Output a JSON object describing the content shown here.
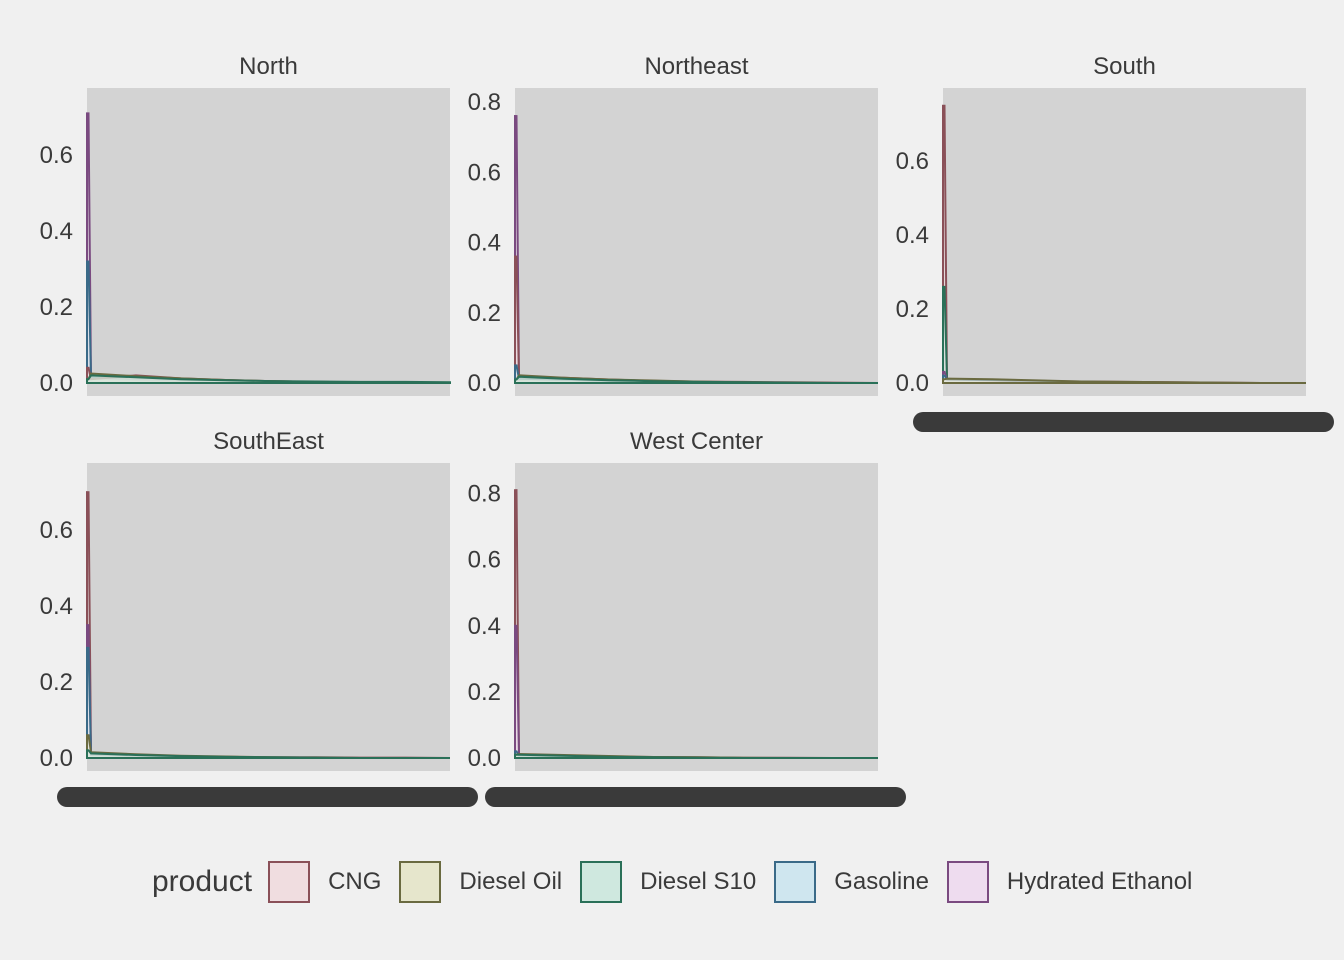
{
  "chart_data": {
    "type": "area",
    "legend": {
      "title": "product",
      "position": "bottom"
    },
    "series_styles": [
      {
        "name": "CNG",
        "fill": "#f0dde0",
        "stroke": "#8a5058"
      },
      {
        "name": "Diesel Oil",
        "fill": "#e6e6cc",
        "stroke": "#6a6a40"
      },
      {
        "name": "Diesel S10",
        "fill": "#cfe8df",
        "stroke": "#2a7058"
      },
      {
        "name": "Gasoline",
        "fill": "#cfe6ef",
        "stroke": "#3a6a88"
      },
      {
        "name": "Hydrated Ethanol",
        "fill": "#eedcef",
        "stroke": "#7a4a80"
      }
    ],
    "x_tick_labels_obscured": true,
    "facets": [
      {
        "title": "North",
        "y_ticks": [
          "0.0",
          "0.2",
          "0.4",
          "0.6"
        ],
        "ylim": [
          0,
          0.74
        ],
        "series": [
          {
            "name": "CNG",
            "values": [
              0.04,
              0.01,
              0.02,
              0.012,
              0.008,
              0.005,
              0.003,
              0.002,
              0.001,
              0
            ]
          },
          {
            "name": "Diesel Oil",
            "values": [
              0.01,
              0.025,
              0.018,
              0.012,
              0.008,
              0.005,
              0.003,
              0.002,
              0.001,
              0
            ]
          },
          {
            "name": "Diesel S10",
            "values": [
              0.01,
              0.02,
              0.015,
              0.01,
              0.007,
              0.005,
              0.004,
              0.003,
              0.003,
              0.002
            ]
          },
          {
            "name": "Gasoline",
            "values": [
              0.32,
              0.015,
              0.01,
              0.007,
              0.004,
              0.002,
              0.001,
              0.001,
              0,
              0
            ]
          },
          {
            "name": "Hydrated Ethanol",
            "values": [
              0.71,
              0.012,
              0.008,
              0.005,
              0.003,
              0.001,
              0,
              0,
              0,
              0
            ]
          }
        ]
      },
      {
        "title": "Northeast",
        "y_ticks": [
          "0.0",
          "0.2",
          "0.4",
          "0.6",
          "0.8"
        ],
        "ylim": [
          0,
          0.8
        ],
        "series": [
          {
            "name": "CNG",
            "values": [
              0.36,
              0.01,
              0.015,
              0.01,
              0.006,
              0.004,
              0.003,
              0.002,
              0.001,
              0
            ]
          },
          {
            "name": "Diesel Oil",
            "values": [
              0.01,
              0.022,
              0.015,
              0.01,
              0.007,
              0.004,
              0.002,
              0.001,
              0,
              0
            ]
          },
          {
            "name": "Diesel S10",
            "values": [
              0.01,
              0.018,
              0.012,
              0.008,
              0.005,
              0.003,
              0.002,
              0.001,
              0,
              0
            ]
          },
          {
            "name": "Gasoline",
            "values": [
              0.05,
              0.012,
              0.009,
              0.006,
              0.004,
              0.002,
              0.001,
              0,
              0,
              0
            ]
          },
          {
            "name": "Hydrated Ethanol",
            "values": [
              0.76,
              0.01,
              0.007,
              0.004,
              0.002,
              0.001,
              0,
              0,
              0,
              0
            ]
          }
        ]
      },
      {
        "title": "South",
        "y_ticks": [
          "0.0",
          "0.2",
          "0.4",
          "0.6"
        ],
        "ylim": [
          0,
          0.76
        ],
        "series": [
          {
            "name": "CNG",
            "values": [
              0.75,
              0.008,
              0.006,
              0.005,
              0.004,
              0.003,
              0.002,
              0.001,
              0,
              0
            ]
          },
          {
            "name": "Diesel Oil",
            "values": [
              0.01,
              0.012,
              0.01,
              0.007,
              0.004,
              0.003,
              0.002,
              0.001,
              0,
              0
            ]
          },
          {
            "name": "Diesel S10",
            "values": [
              0.26,
              0.01,
              0.008,
              0.005,
              0.003,
              0.002,
              0.001,
              0,
              0,
              0
            ]
          },
          {
            "name": "Gasoline",
            "values": [
              0.02,
              0.01,
              0.008,
              0.006,
              0.003,
              0.002,
              0.001,
              0,
              0,
              0
            ]
          },
          {
            "name": "Hydrated Ethanol",
            "values": [
              0.03,
              0.01,
              0.007,
              0.004,
              0.002,
              0.001,
              0,
              0,
              0,
              0
            ]
          }
        ]
      },
      {
        "title": "SouthEast",
        "y_ticks": [
          "0.0",
          "0.2",
          "0.4",
          "0.6"
        ],
        "ylim": [
          0,
          0.74
        ],
        "series": [
          {
            "name": "CNG",
            "values": [
              0.7,
              0.008,
              0.006,
              0.004,
              0.003,
              0.002,
              0.002,
              0.001,
              0.001,
              0
            ]
          },
          {
            "name": "Diesel Oil",
            "values": [
              0.06,
              0.015,
              0.01,
              0.006,
              0.004,
              0.002,
              0.001,
              0,
              0,
              0
            ]
          },
          {
            "name": "Diesel S10",
            "values": [
              0.02,
              0.012,
              0.008,
              0.005,
              0.003,
              0.002,
              0.001,
              0,
              0,
              0
            ]
          },
          {
            "name": "Gasoline",
            "values": [
              0.29,
              0.01,
              0.007,
              0.004,
              0.002,
              0.001,
              0,
              0,
              0,
              0
            ]
          },
          {
            "name": "Hydrated Ethanol",
            "values": [
              0.35,
              0.008,
              0.005,
              0.003,
              0.001,
              0,
              0,
              0,
              0,
              0
            ]
          }
        ]
      },
      {
        "title": "West Center",
        "y_ticks": [
          "0.0",
          "0.2",
          "0.4",
          "0.6",
          "0.8"
        ],
        "ylim": [
          0,
          0.85
        ],
        "series": [
          {
            "name": "CNG",
            "values": [
              0.81,
              0.008,
              0.006,
              0.004,
              0.003,
              0.002,
              0.001,
              0.001,
              0,
              0
            ]
          },
          {
            "name": "Diesel Oil",
            "values": [
              0.01,
              0.012,
              0.009,
              0.006,
              0.003,
              0.002,
              0.001,
              0,
              0,
              0
            ]
          },
          {
            "name": "Diesel S10",
            "values": [
              0.01,
              0.01,
              0.007,
              0.004,
              0.002,
              0.001,
              0,
              0,
              0,
              0
            ]
          },
          {
            "name": "Gasoline",
            "values": [
              0.02,
              0.008,
              0.005,
              0.003,
              0.002,
              0.001,
              0,
              0,
              0,
              0
            ]
          },
          {
            "name": "Hydrated Ethanol",
            "values": [
              0.4,
              0.008,
              0.005,
              0.003,
              0.001,
              0,
              0,
              0,
              0,
              0
            ]
          }
        ]
      }
    ]
  }
}
